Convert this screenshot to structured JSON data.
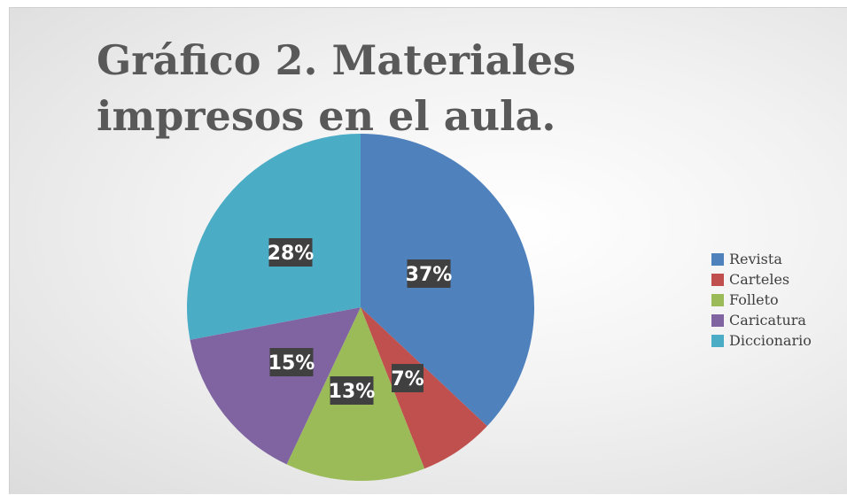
{
  "chart_data": {
    "type": "pie",
    "title": "Gráfico 2. Materiales impresos en el aula.",
    "categories": [
      "Revista",
      "Carteles",
      "Folleto",
      "Caricatura",
      "Diccionario"
    ],
    "values": [
      37,
      7,
      13,
      15,
      28
    ],
    "labels": [
      "37%",
      "7%",
      "13%",
      "15%",
      "28%"
    ],
    "colors": [
      "#4f81bd",
      "#c0504d",
      "#9bbb59",
      "#8064a2",
      "#4bacc6"
    ],
    "legend_position": "right",
    "start_angle": "12 o'clock",
    "direction": "clockwise"
  }
}
